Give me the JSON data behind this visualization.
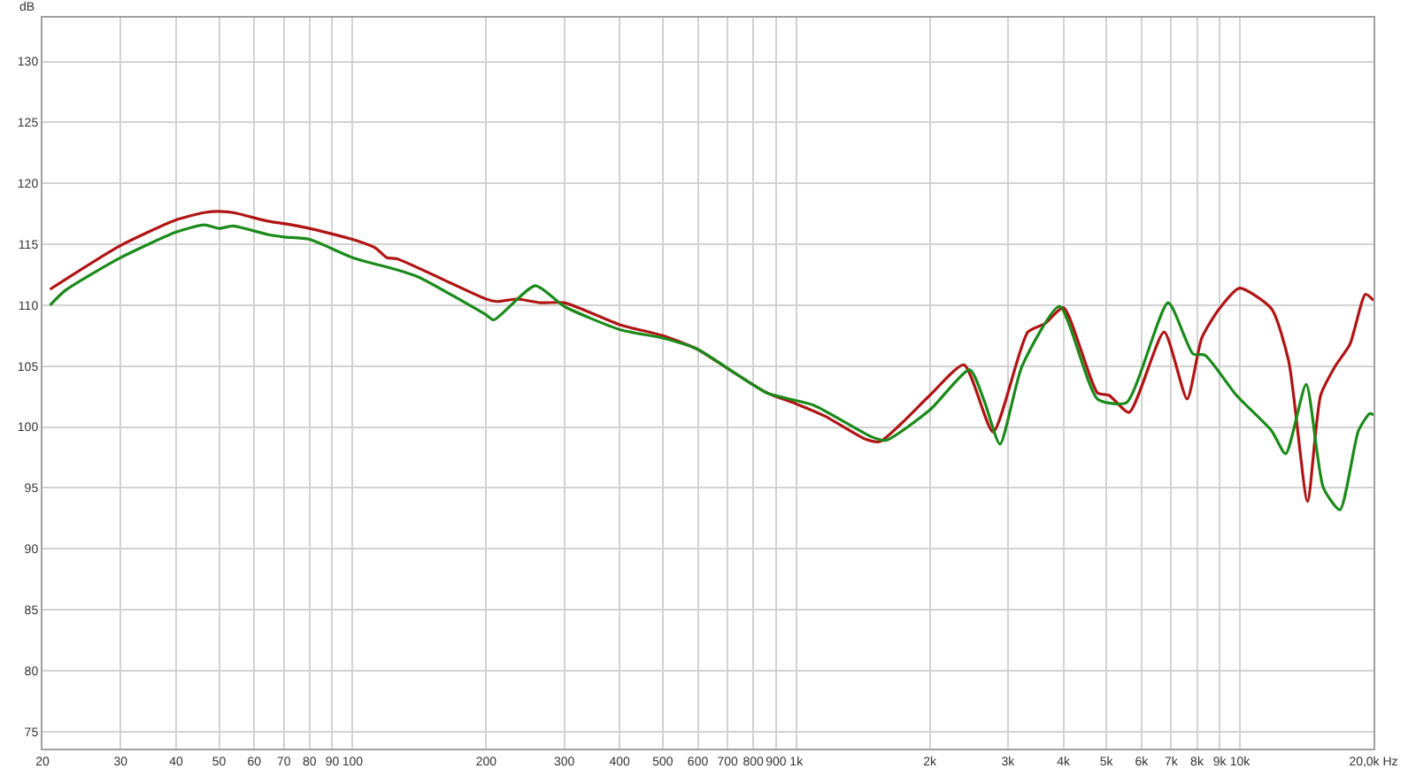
{
  "chart_data": {
    "type": "line",
    "ylabel": "dB",
    "series": [
      {
        "color": "#b01414",
        "x": [
          20.8,
          30,
          40,
          46.3,
          50,
          53.8,
          64.4,
          70,
          80,
          100,
          112.5,
          119.5,
          126,
          200,
          212,
          235,
          265,
          300,
          400,
          500,
          598,
          700,
          859,
          1000,
          1159,
          1432,
          1544,
          2000,
          2388,
          2777,
          3326,
          3640,
          4000,
          4774,
          5070,
          5626,
          6746,
          7600,
          8200,
          8980,
          9980,
          11780,
          12880,
          14200,
          15200,
          16400,
          17700,
          19180,
          20000
        ],
        "values": [
          111.3,
          114.9,
          117.0,
          117.6,
          117.7,
          117.6,
          116.9,
          116.7,
          116.3,
          115.4,
          114.7,
          113.9,
          113.8,
          110.5,
          110.3,
          110.5,
          110.2,
          110.2,
          108.4,
          107.5,
          106.4,
          104.8,
          102.8,
          101.9,
          100.9,
          99.0,
          98.8,
          102.6,
          105.1,
          99.6,
          107.8,
          108.5,
          109.8,
          102.8,
          102.6,
          101.2,
          107.8,
          102.3,
          107.3,
          109.7,
          111.4,
          109.7,
          105.4,
          93.9,
          102.6,
          105.0,
          106.8,
          110.9,
          110.4
        ]
      },
      {
        "color": "#1a8a1a",
        "x": [
          20.8,
          22.5,
          30,
          40,
          46.3,
          50,
          53.8,
          64.4,
          70,
          80,
          100,
          126,
          141,
          200,
          208,
          258,
          300,
          400,
          500,
          598,
          859,
          1092,
          1476,
          1590,
          2000,
          2460,
          2655,
          2878,
          3228,
          3920,
          4774,
          5545,
          6890,
          7840,
          8340,
          9820,
          11780,
          12680,
          14100,
          15420,
          16800,
          18500,
          19600,
          20000
        ],
        "values": [
          110.0,
          111.2,
          113.9,
          116.0,
          116.6,
          116.3,
          116.5,
          115.8,
          115.6,
          115.4,
          113.9,
          112.9,
          112.3,
          109.2,
          108.8,
          111.6,
          109.9,
          108.0,
          107.3,
          106.4,
          102.8,
          101.8,
          99.2,
          98.9,
          101.4,
          104.7,
          102.1,
          98.6,
          105.0,
          109.9,
          102.3,
          102.0,
          110.2,
          106.0,
          105.9,
          102.6,
          99.7,
          97.8,
          103.5,
          95.0,
          93.2,
          99.7,
          101.1,
          101.0
        ]
      }
    ],
    "log": "x",
    "xlim": [
      20,
      20000
    ],
    "xticks": [
      20,
      30,
      40,
      50,
      60,
      70,
      80,
      90,
      100,
      200,
      300,
      400,
      500,
      600,
      700,
      800,
      900,
      {
        "value": 1000,
        "label": "1k"
      },
      {
        "value": 2000,
        "label": "2k"
      },
      {
        "value": 3000,
        "label": "3k"
      },
      {
        "value": 4000,
        "label": "4k"
      },
      {
        "value": 5000,
        "label": "5k"
      },
      {
        "value": 6000,
        "label": "6k"
      },
      {
        "value": 7000,
        "label": "7k"
      },
      {
        "value": 8000,
        "label": "8k"
      },
      {
        "value": 9000,
        "label": "9k"
      },
      {
        "value": 10000,
        "label": "10k"
      },
      {
        "value": 20000,
        "label": "20,0k Hz"
      }
    ],
    "ylim": [
      73.6,
      133.6
    ],
    "yticks": [
      75,
      80,
      85,
      90,
      95,
      100,
      105,
      110,
      115,
      120,
      125,
      130
    ],
    "grid": true,
    "marker": "none",
    "line_style": "solid"
  }
}
